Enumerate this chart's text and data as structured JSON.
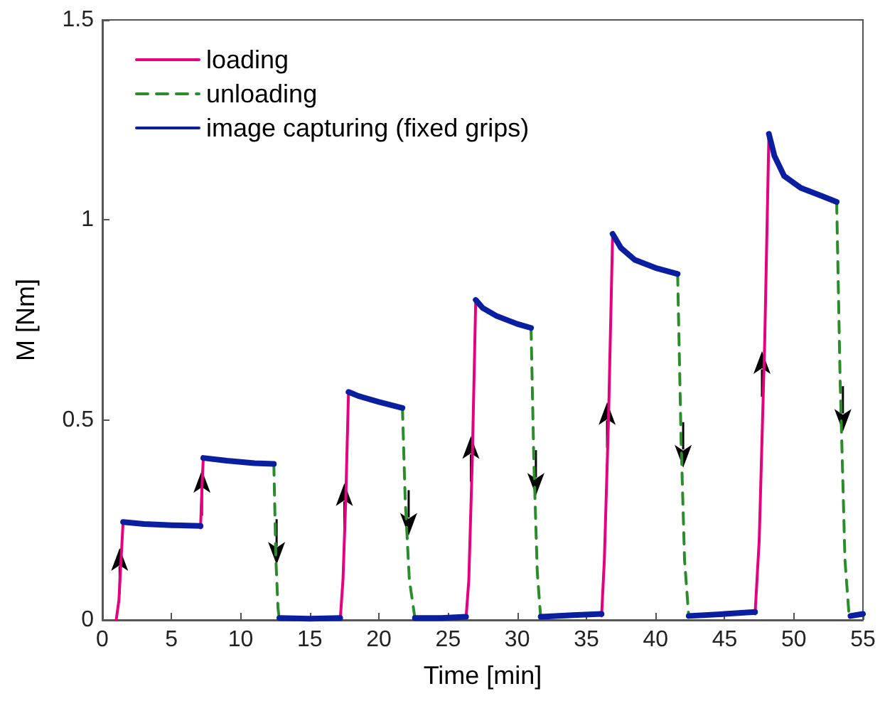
{
  "chart_data": {
    "type": "line",
    "xlabel": "Time [min]",
    "ylabel": "M [Nm]",
    "xlim": [
      0,
      55
    ],
    "xticks": [
      0,
      5,
      10,
      15,
      20,
      25,
      30,
      35,
      40,
      45,
      50,
      55
    ],
    "ylim": [
      0,
      1.5
    ],
    "yticks": [
      0,
      0.5,
      1,
      1.5
    ],
    "grid": false,
    "legend": "top left",
    "marker": "none",
    "series": [
      {
        "name": "loading",
        "color": "#e6007e",
        "line_style": "solid",
        "x": [
          1.0,
          1.2,
          1.35,
          1.5,
          4,
          7.1,
          7.2,
          7.3,
          12,
          17.2,
          17.4,
          17.6,
          17.8,
          22,
          26.3,
          26.5,
          26.75,
          27.0,
          31,
          36.1,
          36.3,
          36.6,
          36.9,
          42,
          47.2,
          47.5,
          47.9,
          48.2
        ],
        "values": [
          0,
          0.05,
          0.15,
          0.245,
          null,
          0.23,
          0.33,
          0.405,
          null,
          0,
          0.1,
          0.3,
          0.57,
          null,
          0.005,
          0.1,
          0.4,
          0.8,
          null,
          0.01,
          0.15,
          0.5,
          0.965,
          null,
          0.015,
          0.2,
          0.7,
          1.215
        ]
      },
      {
        "name": "unloading",
        "color": "#2a8c2a",
        "line_style": "dashed",
        "x": [
          12.4,
          12.55,
          12.7,
          12.8,
          17,
          21.7,
          21.9,
          22.2,
          22.6,
          27,
          31.0,
          31.2,
          31.45,
          31.7,
          37,
          41.6,
          41.85,
          42.1,
          42.4,
          48,
          53.1,
          53.35,
          53.7,
          54.0
        ],
        "values": [
          0.39,
          0.15,
          0.03,
          0,
          null,
          0.53,
          0.3,
          0.1,
          0.005,
          null,
          0.73,
          0.4,
          0.12,
          0.005,
          null,
          0.865,
          0.45,
          0.15,
          0.01,
          null,
          1.045,
          0.6,
          0.15,
          0.01
        ]
      },
      {
        "name": "image capturing (fixed grips)",
        "color": "#0a1fa0",
        "line_style": "solid",
        "x": [
          1.5,
          3,
          5,
          7.1,
          7.2,
          7.3,
          9,
          11,
          12.4,
          12.6,
          12.8,
          15,
          17.2,
          17.5,
          17.8,
          18.5,
          20,
          21.7,
          22,
          22.6,
          24.5,
          26.3,
          26.6,
          27.0,
          27.5,
          28.5,
          30,
          31.0,
          31.3,
          31.7,
          34,
          36.1,
          36.5,
          36.9,
          37.5,
          38.5,
          40,
          41.6,
          42,
          42.4,
          45,
          47.2,
          47.7,
          48.2,
          48.6,
          49.3,
          50.5,
          52,
          53.1,
          53.5,
          54.1,
          55
        ],
        "values": [
          0.245,
          0.24,
          0.237,
          0.235,
          null,
          0.405,
          0.398,
          0.392,
          0.39,
          null,
          0.005,
          0.003,
          0.005,
          null,
          0.57,
          0.56,
          0.545,
          0.53,
          null,
          0.005,
          0.005,
          0.008,
          null,
          0.8,
          0.78,
          0.76,
          0.74,
          0.73,
          null,
          0.008,
          0.012,
          0.015,
          null,
          0.965,
          0.93,
          0.9,
          0.88,
          0.865,
          null,
          0.01,
          0.015,
          0.02,
          null,
          1.215,
          1.16,
          1.11,
          1.08,
          1.06,
          1.045,
          null,
          0.01,
          0.015
        ]
      }
    ]
  }
}
